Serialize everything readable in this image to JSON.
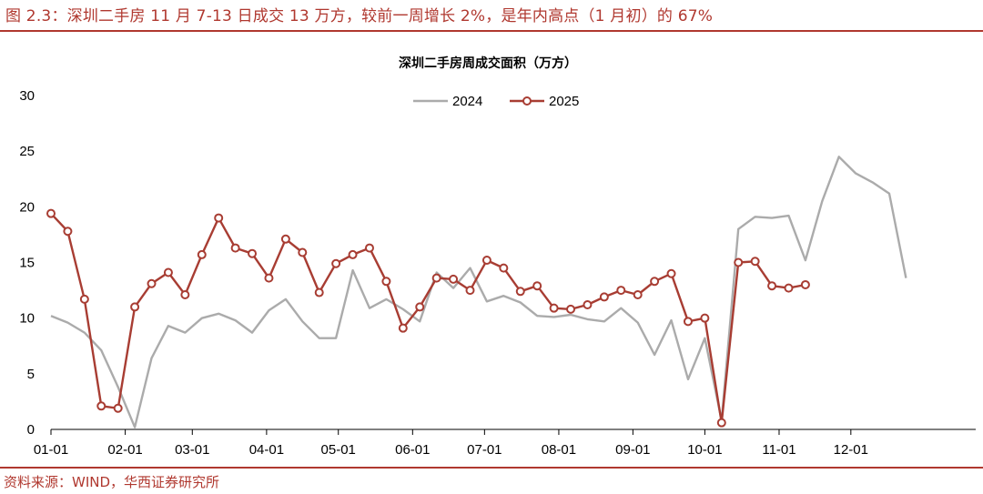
{
  "figure": {
    "title": "图 2.3：深圳二手房 11 月 7-13 日成交 13 万方，较前一周增长 2%，是年内高点（1 月初）的 67%",
    "source": "资料来源：WIND，华西证券研究所",
    "accent_color": "#b0382f"
  },
  "chart_data": {
    "type": "line",
    "title": "深圳二手房周成交面积（万方）",
    "xlabel": "",
    "ylabel": "",
    "ylim": [
      0,
      30
    ],
    "yticks": [
      0,
      5,
      10,
      15,
      20,
      25,
      30
    ],
    "x_tick_labels": [
      "01-01",
      "02-01",
      "03-01",
      "04-01",
      "05-01",
      "06-01",
      "07-01",
      "08-01",
      "09-01",
      "10-01",
      "11-01",
      "12-01"
    ],
    "x_tick_weeks": [
      0,
      4.43,
      8.43,
      12.86,
      17.14,
      21.57,
      25.86,
      30.29,
      34.71,
      39.0,
      43.43,
      47.71
    ],
    "grid": false,
    "legend_position": "top-center",
    "series": [
      {
        "name": "2024",
        "color": "#ababab",
        "marker": "none",
        "values": [
          10.2,
          9.6,
          8.7,
          7.1,
          3.8,
          0.2,
          6.4,
          9.3,
          8.7,
          10.0,
          10.4,
          9.8,
          8.7,
          10.7,
          11.7,
          9.7,
          8.2,
          8.2,
          14.3,
          10.9,
          11.7,
          10.8,
          9.7,
          14.1,
          12.7,
          14.5,
          11.5,
          12.0,
          11.4,
          10.2,
          10.1,
          10.3,
          9.9,
          9.7,
          10.9,
          9.6,
          6.7,
          9.8,
          4.5,
          8.2,
          0.8,
          18.0,
          19.1,
          19.0,
          19.2,
          15.2,
          20.5,
          24.5,
          23.0,
          22.2,
          21.2,
          13.6
        ]
      },
      {
        "name": "2025",
        "color": "#a83d33",
        "marker": "circle",
        "values": [
          19.4,
          17.8,
          11.7,
          2.1,
          1.9,
          11.0,
          13.1,
          14.1,
          12.1,
          15.7,
          19.0,
          16.3,
          15.8,
          13.6,
          17.1,
          15.9,
          12.3,
          14.9,
          15.7,
          16.3,
          13.3,
          9.1,
          11.0,
          13.6,
          13.5,
          12.5,
          15.2,
          14.5,
          12.4,
          12.9,
          10.9,
          10.8,
          11.2,
          11.9,
          12.5,
          12.1,
          13.3,
          14.0,
          9.7,
          10.0,
          0.6,
          15.0,
          15.1,
          12.9,
          12.7,
          13.0
        ]
      }
    ]
  }
}
